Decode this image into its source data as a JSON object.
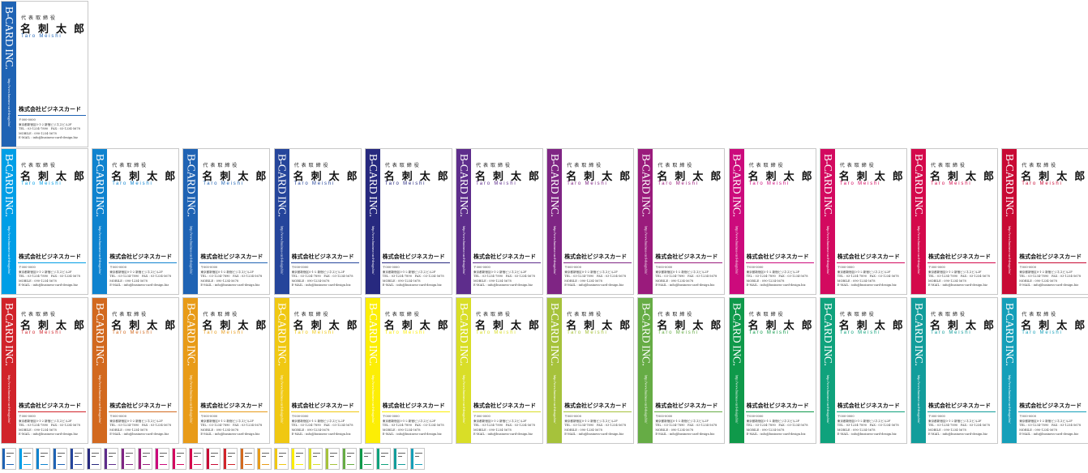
{
  "card_text": {
    "brand": "B-CARD INC.",
    "url": "http://www.business-card-design.biz/",
    "role": "代表取締役",
    "name": "名刺太郎",
    "romaji": "Taro Meishi",
    "company": "株式会社ビジネスカード",
    "postal": "〒000-0000",
    "address": "東京都新宿区0-1-2 新宿ビジネスビル2F",
    "tel_fax": "TEL : 03-1234-7890　FAX : 03-1234-5678",
    "mobile": "MOBILE : 090-1234-5678",
    "email": "E-MAIL : info@business-card-design.biz"
  },
  "featured_color": "#1f63b4",
  "row1_colors": [
    "#009ee6",
    "#0f83cf",
    "#1f63b4",
    "#25459b",
    "#27297f",
    "#5e2d8c",
    "#7f2584",
    "#9a1b7c",
    "#cc0a7c",
    "#d3095f",
    "#d4094b",
    "#c80a34"
  ],
  "row2_colors": [
    "#d1232a",
    "#d2691f",
    "#e89b18",
    "#f0c812",
    "#fcee05",
    "#d9de27",
    "#a6c23b",
    "#66ac45",
    "#0f994a",
    "#0fa27c",
    "#129d9b",
    "#159fb9"
  ],
  "thumbnail_colors": [
    "#1f63b4",
    "#009ee6",
    "#0f83cf",
    "#1f63b4",
    "#25459b",
    "#27297f",
    "#5e2d8c",
    "#7f2584",
    "#9a1b7c",
    "#cc0a7c",
    "#d3095f",
    "#d4094b",
    "#c80a34",
    "#d1232a",
    "#d2691f",
    "#e89b18",
    "#f0c812",
    "#fcee05",
    "#d9de27",
    "#a6c23b",
    "#66ac45",
    "#0f994a",
    "#0fa27c",
    "#129d9b",
    "#159fb9"
  ]
}
